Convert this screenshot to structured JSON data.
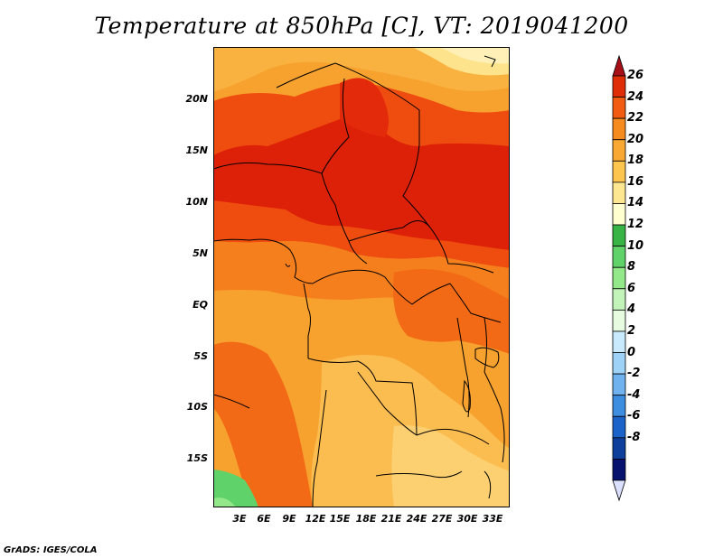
{
  "title": "Temperature at 850hPa [C], VT: 2019041200",
  "footer": "GrADS: IGES/COLA",
  "map": {
    "variable": "Temperature at 850hPa",
    "units": "C",
    "valid_time": "2019041200",
    "region": "Central Africa",
    "lat_labels": [
      "20N",
      "15N",
      "10N",
      "5N",
      "EQ",
      "5S",
      "10S",
      "15S"
    ],
    "lon_labels": [
      "3E",
      "6E",
      "9E",
      "12E",
      "15E",
      "18E",
      "21E",
      "24E",
      "27E",
      "30E",
      "33E"
    ]
  },
  "colorbar": {
    "levels": [
      26,
      24,
      22,
      20,
      18,
      16,
      14,
      12,
      10,
      8,
      6,
      4,
      2,
      0,
      -2,
      -4,
      -6,
      -8
    ],
    "labels": [
      "26",
      "24",
      "22",
      "20",
      "18",
      "16",
      "14",
      "12",
      "10",
      "8",
      "6",
      "4",
      "2",
      "0",
      "-2",
      "-4",
      "-6",
      "-8"
    ],
    "colors": [
      "#a50f15",
      "#de2d07",
      "#f25c12",
      "#f58b1f",
      "#f9a833",
      "#fcc64e",
      "#fde891",
      "#ffffd0",
      "#38b446",
      "#5fd36a",
      "#93e889",
      "#c2f4ba",
      "#e6fbe0",
      "#c9e9fc",
      "#9fd2f7",
      "#6fb2ee",
      "#3d8de0",
      "#1b63c9",
      "#0e3f9a",
      "#07126f",
      "#dce0ff"
    ]
  },
  "styles": {
    "ocean": "#f4a83a",
    "hot": "#dd2008",
    "warm": "#ef4d0f",
    "mild": "#f7a12e",
    "cool": "#fbc861",
    "cold": "#fde38c",
    "green": "#5fd36a"
  }
}
